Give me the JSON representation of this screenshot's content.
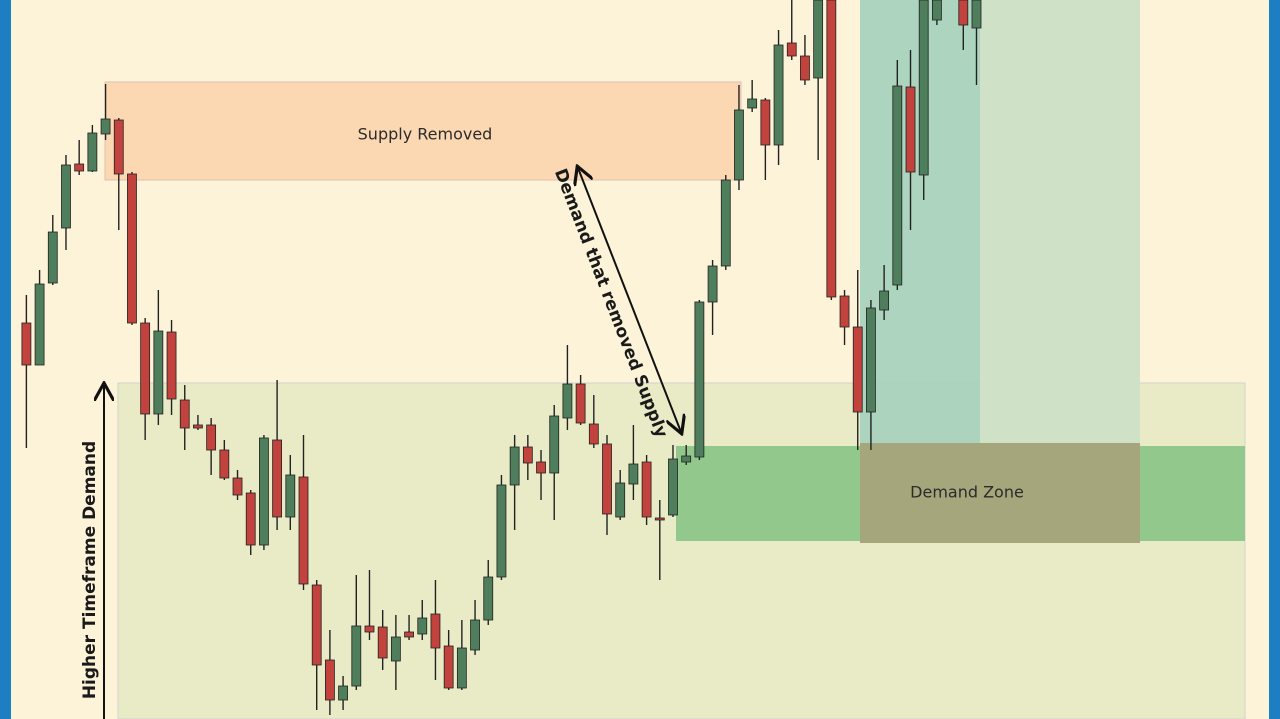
{
  "chart_data": {
    "type": "candlestick",
    "annotations": [
      "Supply Removed",
      "Demand that removed Supply",
      "Higher Timeframe Demand",
      "Demand Zone"
    ],
    "x": [
      0,
      1,
      2,
      3,
      4,
      5,
      6,
      7,
      8,
      9,
      10,
      11,
      12,
      13,
      14,
      15,
      16,
      17,
      18,
      19,
      20,
      21,
      22,
      23,
      24,
      25,
      26,
      27,
      28,
      29,
      30,
      31,
      32,
      33,
      34,
      35,
      36,
      37,
      38,
      39,
      40,
      41,
      42,
      43,
      44,
      45,
      46,
      47,
      48,
      49,
      50,
      51,
      52,
      53,
      54,
      55,
      56,
      57,
      58,
      59,
      60,
      61,
      62,
      63,
      64,
      65,
      66,
      67,
      68,
      69,
      71,
      72
    ],
    "open": [
      396,
      354,
      436,
      491,
      555,
      548,
      585,
      599,
      545,
      396,
      305,
      387,
      319,
      294,
      294,
      269,
      241,
      226,
      174,
      279,
      202,
      242,
      134,
      59,
      19,
      33,
      93,
      92,
      58,
      87,
      85,
      105,
      73,
      31,
      69,
      99,
      142,
      234,
      272,
      257,
      246,
      301,
      335,
      295,
      275,
      202,
      235,
      257,
      201,
      204,
      257,
      262,
      417,
      453,
      539,
      611,
      619,
      574,
      676,
      663,
      641,
      719,
      423,
      392,
      307,
      409,
      434,
      632,
      544,
      699,
      719,
      691
    ],
    "high": [
      424,
      449,
      504,
      564,
      579,
      594,
      635,
      601,
      547,
      401,
      429,
      399,
      334,
      304,
      301,
      279,
      249,
      229,
      284,
      339,
      264,
      284,
      139,
      89,
      43,
      144,
      149,
      109,
      104,
      104,
      119,
      139,
      89,
      99,
      119,
      159,
      244,
      284,
      284,
      269,
      314,
      374,
      344,
      324,
      284,
      249,
      294,
      264,
      219,
      274,
      274,
      419,
      459,
      544,
      634,
      639,
      621,
      689,
      719,
      684,
      719,
      719,
      429,
      449,
      419,
      454,
      659,
      669,
      719,
      719,
      719,
      719
    ],
    "low": [
      271,
      354,
      434,
      469,
      544,
      547,
      579,
      489,
      394,
      279,
      294,
      304,
      269,
      289,
      244,
      239,
      219,
      164,
      169,
      189,
      189,
      129,
      9,
      4,
      9,
      29,
      79,
      49,
      29,
      79,
      79,
      39,
      29,
      29,
      64,
      94,
      139,
      189,
      239,
      219,
      199,
      289,
      294,
      271,
      184,
      199,
      219,
      194,
      139,
      202,
      254,
      259,
      384,
      449,
      529,
      607,
      539,
      554,
      659,
      634,
      559,
      419,
      374,
      269,
      269,
      399,
      429,
      489,
      519,
      694,
      669,
      634
    ],
    "close": [
      354,
      435,
      487,
      554,
      548,
      586,
      600,
      545,
      396,
      305,
      388,
      320,
      291,
      291,
      269,
      241,
      224,
      174,
      281,
      202,
      244,
      135,
      54,
      19,
      33,
      93,
      87,
      61,
      82,
      82,
      101,
      71,
      31,
      71,
      99,
      142,
      234,
      272,
      256,
      246,
      303,
      335,
      296,
      275,
      205,
      236,
      255,
      202,
      199,
      260,
      263,
      417,
      453,
      539,
      609,
      620,
      574,
      674,
      663,
      639,
      719,
      422,
      392,
      307,
      411,
      428,
      633,
      547,
      719,
      719,
      694,
      719
    ],
    "up_color": "#4f7e5c",
    "down_color": "#c2423d",
    "wick_color": "#222222",
    "xlim": [
      -2,
      95
    ],
    "ylim": [
      0,
      719
    ]
  }
}
